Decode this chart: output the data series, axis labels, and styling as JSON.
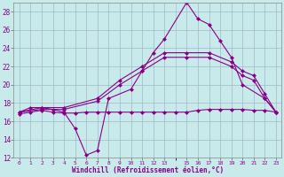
{
  "xlabel": "Windchill (Refroidissement éolien,°C)",
  "background_color": "#c8eaea",
  "grid_color": "#a0b8c8",
  "line_color": "#880088",
  "xlim": [
    -0.5,
    23.5
  ],
  "ylim": [
    12,
    29
  ],
  "xticks": [
    0,
    1,
    2,
    3,
    4,
    5,
    6,
    7,
    8,
    9,
    10,
    11,
    12,
    13,
    15,
    16,
    17,
    18,
    19,
    20,
    21,
    22,
    23
  ],
  "yticks": [
    12,
    14,
    16,
    18,
    20,
    22,
    24,
    26,
    28
  ],
  "lines": [
    {
      "x": [
        0,
        1,
        2,
        3,
        4,
        5,
        6,
        7,
        8,
        10,
        11,
        12,
        13,
        15,
        16,
        17,
        18,
        19,
        20,
        22,
        23
      ],
      "y": [
        17,
        17.5,
        17.5,
        17.3,
        17.0,
        15.2,
        12.3,
        12.8,
        18.5,
        19.5,
        21.5,
        23.5,
        25.0,
        29.0,
        27.2,
        26.6,
        24.8,
        23.0,
        20.0,
        18.5,
        17.0
      ],
      "marker": "D",
      "markersize": 2.5
    },
    {
      "x": [
        0,
        2,
        4,
        7,
        9,
        11,
        13,
        15,
        17,
        19,
        20,
        21,
        22,
        23
      ],
      "y": [
        17,
        17.5,
        17.5,
        18.5,
        20.5,
        22.0,
        23.5,
        23.5,
        23.5,
        22.5,
        21.5,
        21.0,
        19.0,
        17.0
      ],
      "marker": "D",
      "markersize": 2.5
    },
    {
      "x": [
        0,
        2,
        4,
        7,
        9,
        11,
        13,
        15,
        17,
        19,
        20,
        21,
        22,
        23
      ],
      "y": [
        17,
        17.3,
        17.3,
        18.2,
        20.0,
        21.5,
        23.0,
        23.0,
        23.0,
        22.0,
        21.0,
        20.5,
        18.5,
        17.0
      ],
      "marker": "D",
      "markersize": 2.5
    },
    {
      "x": [
        0,
        1,
        2,
        3,
        4,
        5,
        6,
        7,
        8,
        9,
        10,
        11,
        12,
        13,
        14,
        15,
        16,
        17,
        18,
        19,
        20,
        21,
        22,
        23
      ],
      "y": [
        16.8,
        17.0,
        17.2,
        17.0,
        16.9,
        16.9,
        17.0,
        17.0,
        17.0,
        17.0,
        17.0,
        17.0,
        17.0,
        17.0,
        17.0,
        17.0,
        17.2,
        17.3,
        17.3,
        17.3,
        17.3,
        17.2,
        17.2,
        17.0
      ],
      "marker": "D",
      "markersize": 2.5
    }
  ]
}
